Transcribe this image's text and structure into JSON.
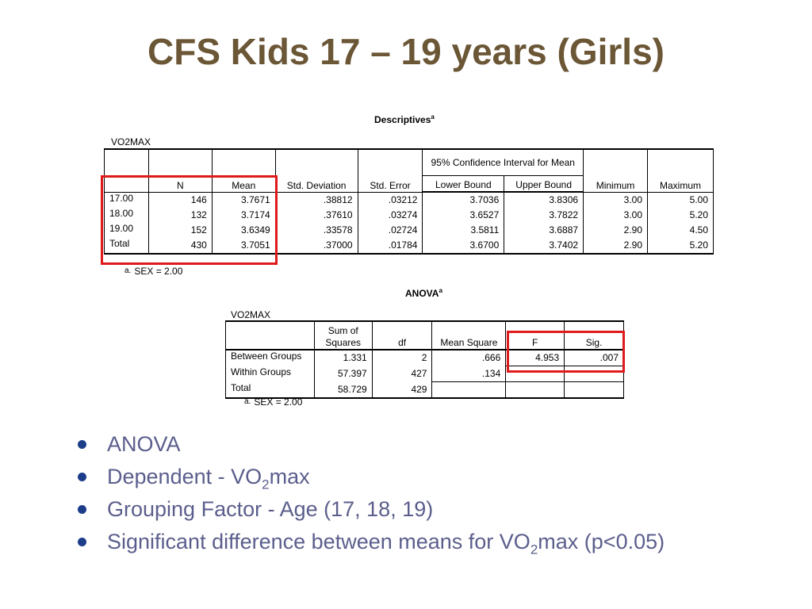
{
  "title": "CFS Kids 17 – 19 years (Girls)",
  "descriptives": {
    "caption": "Descriptives",
    "caption_sup": "a",
    "variable": "VO2MAX",
    "ci_header": "95% Confidence Interval for Mean",
    "headers": [
      "",
      "N",
      "Mean",
      "Std. Deviation",
      "Std. Error",
      "Lower Bound",
      "Upper Bound",
      "Minimum",
      "Maximum"
    ],
    "rows": [
      {
        "label": "17.00",
        "n": "146",
        "mean": "3.7671",
        "sd": ".38812",
        "se": ".03212",
        "lower": "3.7036",
        "upper": "3.8306",
        "min": "3.00",
        "max": "5.00"
      },
      {
        "label": "18.00",
        "n": "132",
        "mean": "3.7174",
        "sd": ".37610",
        "se": ".03274",
        "lower": "3.6527",
        "upper": "3.7822",
        "min": "3.00",
        "max": "5.20"
      },
      {
        "label": "19.00",
        "n": "152",
        "mean": "3.6349",
        "sd": ".33578",
        "se": ".02724",
        "lower": "3.5811",
        "upper": "3.6887",
        "min": "2.90",
        "max": "4.50"
      },
      {
        "label": "Total",
        "n": "430",
        "mean": "3.7051",
        "sd": ".37000",
        "se": ".01784",
        "lower": "3.6700",
        "upper": "3.7402",
        "min": "2.90",
        "max": "5.20"
      }
    ],
    "footnote_marker": "a.",
    "footnote": "SEX = 2.00"
  },
  "anova": {
    "caption": "ANOVA",
    "caption_sup": "a",
    "variable": "VO2MAX",
    "headers": [
      "",
      "Sum of Squares",
      "df",
      "Mean Square",
      "F",
      "Sig."
    ],
    "rows": [
      {
        "label": "Between Groups",
        "ss": "1.331",
        "df": "2",
        "ms": ".666",
        "f": "4.953",
        "sig": ".007"
      },
      {
        "label": "Within Groups",
        "ss": "57.397",
        "df": "427",
        "ms": ".134",
        "f": "",
        "sig": ""
      },
      {
        "label": "Total",
        "ss": "58.729",
        "df": "429",
        "ms": "",
        "f": "",
        "sig": ""
      }
    ],
    "footnote_marker": "a.",
    "footnote": "SEX = 2.00"
  },
  "bullets": [
    {
      "pre": "ANOVA",
      "sub": "",
      "post": ""
    },
    {
      "pre": "Dependent - VO",
      "sub": "2",
      "post": "max"
    },
    {
      "pre": "Grouping Factor - Age (17, 18, 19)",
      "sub": "",
      "post": ""
    },
    {
      "pre": "Significant difference between means for VO",
      "sub": "2",
      "post": "max (p<0.05)"
    }
  ],
  "colors": {
    "title": "#6b5636",
    "bullet_text": "#5b5e8c",
    "bullet_dot": "#1c3e8a",
    "highlight": "#e01a1a"
  }
}
